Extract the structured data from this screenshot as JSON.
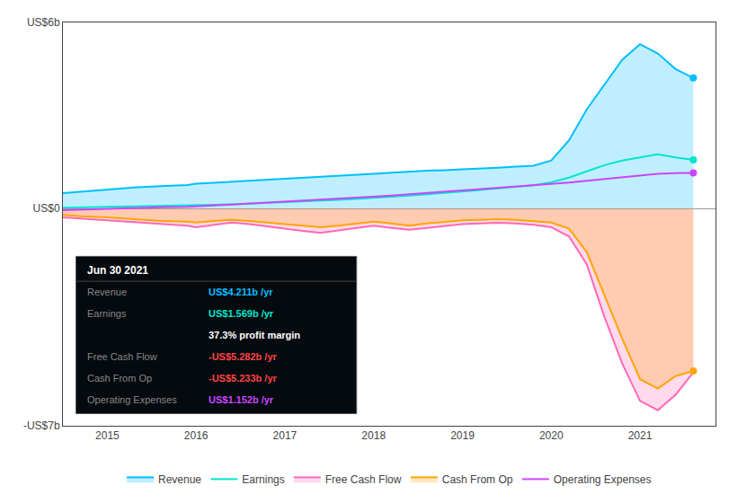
{
  "chart_data": {
    "type": "line",
    "x": [
      2014.5,
      2014.7,
      2015.0,
      2015.3,
      2015.6,
      2015.9,
      2016.0,
      2016.2,
      2016.4,
      2016.6,
      2016.8,
      2017.0,
      2017.2,
      2017.4,
      2017.6,
      2017.8,
      2018.0,
      2018.2,
      2018.4,
      2018.6,
      2018.8,
      2019.0,
      2019.2,
      2019.4,
      2019.6,
      2019.8,
      2020.0,
      2020.2,
      2020.4,
      2020.6,
      2020.8,
      2021.0,
      2021.2,
      2021.4,
      2021.6
    ],
    "xlim": [
      2014.5,
      2021.85
    ],
    "xticks": [
      2015,
      2016,
      2017,
      2018,
      2019,
      2020,
      2021
    ],
    "ylim": [
      -7,
      6
    ],
    "yticks": [
      {
        "value": -7,
        "label": "-US$7b"
      },
      {
        "value": 0,
        "label": "US$0"
      },
      {
        "value": 6,
        "label": "US$6b"
      }
    ],
    "grid": "y",
    "legend": "bottom",
    "series": [
      {
        "name": "Revenue",
        "color": "#00bfff",
        "type": "area",
        "marker": "circle",
        "values": [
          0.5,
          0.55,
          0.62,
          0.68,
          0.72,
          0.76,
          0.8,
          0.83,
          0.86,
          0.89,
          0.92,
          0.95,
          0.98,
          1.01,
          1.04,
          1.08,
          1.12,
          1.16,
          1.2,
          1.22,
          1.24,
          1.26,
          1.29,
          1.32,
          1.35,
          1.38,
          1.55,
          2.2,
          3.2,
          4.0,
          4.8,
          5.3,
          5.0,
          4.5,
          4.211
        ]
      },
      {
        "name": "Earnings",
        "color": "#00e5cc",
        "marker": "circle",
        "values": [
          0.03,
          0.04,
          0.05,
          0.07,
          0.08,
          0.09,
          0.1,
          0.12,
          0.14,
          0.16,
          0.18,
          0.2,
          0.22,
          0.25,
          0.28,
          0.31,
          0.34,
          0.38,
          0.42,
          0.46,
          0.5,
          0.55,
          0.6,
          0.65,
          0.7,
          0.75,
          0.85,
          1.0,
          1.2,
          1.4,
          1.55,
          1.65,
          1.75,
          1.65,
          1.569
        ]
      },
      {
        "name": "Free Cash Flow",
        "color": "#ff69b4",
        "type": "area",
        "values": [
          -0.28,
          -0.32,
          -0.38,
          -0.45,
          -0.5,
          -0.55,
          -0.6,
          -0.52,
          -0.45,
          -0.5,
          -0.58,
          -0.65,
          -0.72,
          -0.78,
          -0.7,
          -0.62,
          -0.55,
          -0.62,
          -0.68,
          -0.62,
          -0.55,
          -0.5,
          -0.48,
          -0.46,
          -0.48,
          -0.52,
          -0.6,
          -0.9,
          -1.8,
          -3.5,
          -5.0,
          -6.2,
          -6.5,
          -6.0,
          -5.282
        ]
      },
      {
        "name": "Cash From Op",
        "color": "#ffa500",
        "type": "area",
        "marker": "circle",
        "values": [
          -0.2,
          -0.25,
          -0.28,
          -0.35,
          -0.4,
          -0.42,
          -0.45,
          -0.4,
          -0.36,
          -0.4,
          -0.45,
          -0.5,
          -0.55,
          -0.6,
          -0.55,
          -0.48,
          -0.42,
          -0.48,
          -0.55,
          -0.48,
          -0.42,
          -0.38,
          -0.36,
          -0.34,
          -0.36,
          -0.4,
          -0.45,
          -0.65,
          -1.4,
          -2.8,
          -4.2,
          -5.5,
          -5.8,
          -5.4,
          -5.233
        ]
      },
      {
        "name": "Operating Expenses",
        "color": "#cc44ff",
        "marker": "circle",
        "values": [
          -0.05,
          -0.03,
          0.0,
          0.02,
          0.04,
          0.06,
          0.08,
          0.1,
          0.13,
          0.16,
          0.19,
          0.22,
          0.26,
          0.3,
          0.33,
          0.36,
          0.38,
          0.42,
          0.46,
          0.5,
          0.54,
          0.58,
          0.62,
          0.66,
          0.7,
          0.74,
          0.78,
          0.84,
          0.9,
          0.96,
          1.02,
          1.08,
          1.12,
          1.14,
          1.152
        ]
      }
    ],
    "annotations": [
      {
        "text": "Jun 30 2021"
      },
      {
        "label": "Revenue",
        "text": "US$4.211b /yr",
        "color": "#00bfff"
      },
      {
        "label": "Earnings",
        "text": "US$1.569b /yr",
        "color": "#00e5cc"
      },
      {
        "text": "37.3% profit margin",
        "color": "#ffffff"
      },
      {
        "label": "Free Cash Flow",
        "text": "-US$5.282b /yr",
        "color": "#ff4444"
      },
      {
        "label": "Cash From Op",
        "text": "-US$5.233b /yr",
        "color": "#ff4444"
      },
      {
        "label": "Operating Expenses",
        "text": "US$1.152b /yr",
        "color": "#cc44ff"
      }
    ]
  }
}
